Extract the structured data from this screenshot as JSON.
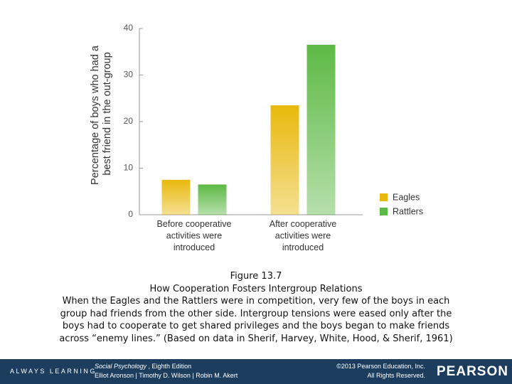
{
  "chart_data": {
    "type": "bar",
    "y_label": [
      "Percentage of boys who had a",
      "best friend in the out-group"
    ],
    "categories": [
      [
        "Before cooperative",
        "activities were",
        "introduced"
      ],
      [
        "After cooperative",
        "activities were",
        "introduced"
      ]
    ],
    "series": [
      {
        "name": "Eagles",
        "color": "#e8b90c",
        "values": [
          7.5,
          23.5
        ]
      },
      {
        "name": "Rattlers",
        "color": "#5db945",
        "values": [
          6.5,
          36.5
        ]
      }
    ],
    "ylim": [
      0,
      40
    ],
    "yticks": [
      0,
      10,
      20,
      30,
      40
    ],
    "legend": "lower-right"
  },
  "caption": {
    "figure": "Figure 13.7",
    "title": "How Cooperation Fosters Intergroup Relations",
    "lines": [
      "When the Eagles and the Rattlers were in competition, very few of the boys in each",
      "group had friends from the other side. Intergroup tensions were eased only after the",
      "boys had to cooperate to get shared privileges and the boys began to make friends",
      "across “enemy lines.” (Based on data in Sherif, Harvey, White, Hood, & Sherif, 1961)"
    ]
  },
  "footer": {
    "tagline": "ALWAYS LEARNING",
    "book_title": "Social Psychology",
    "edition": " , Eighth Edition",
    "authors": "Elliot Aronson | Timothy D. Wilson | Robin M. Akert",
    "copyright": "©2013 Pearson Education, Inc.",
    "rights": "All Rights Reserved.",
    "brand": "PEARSON"
  }
}
